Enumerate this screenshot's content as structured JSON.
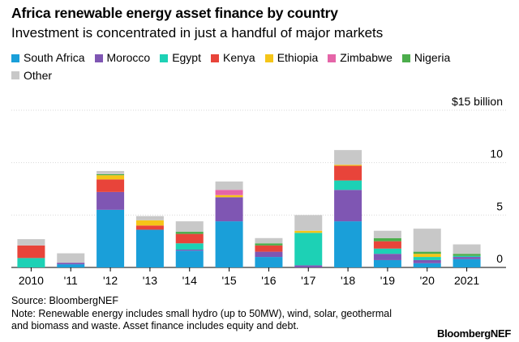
{
  "title": "Africa renewable energy asset finance by country",
  "subtitle": "Investment is concentrated in just a handful of major markets",
  "source": "Source: BloombergNEF",
  "note": "Note: Renewable energy includes small hydro (up to 50MW), wind, solar, geothermal and biomass and waste. Asset finance includes equity and debt.",
  "brand": "BloombergNEF",
  "chart_data": {
    "type": "bar",
    "stacked": true,
    "categories": [
      "2010",
      "'11",
      "'12",
      "'13",
      "'14",
      "'15",
      "'16",
      "'17",
      "'18",
      "'19",
      "'20",
      "2021"
    ],
    "ylim": [
      0,
      15
    ],
    "yticks": [
      {
        "value": 0,
        "label": "0"
      },
      {
        "value": 5,
        "label": "5"
      },
      {
        "value": 10,
        "label": "10"
      },
      {
        "value": 15,
        "label": "$15 billion"
      }
    ],
    "grid": true,
    "legend_position": "top",
    "series": [
      {
        "name": "South Africa",
        "color": "#1a9fd9",
        "values": [
          0.0,
          0.3,
          5.5,
          3.6,
          1.6,
          4.4,
          1.0,
          0.0,
          4.4,
          0.7,
          0.4,
          0.8
        ]
      },
      {
        "name": "Morocco",
        "color": "#7f56b3",
        "values": [
          0.0,
          0.15,
          1.7,
          0.0,
          0.1,
          2.3,
          0.5,
          0.2,
          3.0,
          0.6,
          0.3,
          0.2
        ]
      },
      {
        "name": "Egypt",
        "color": "#1dd1b5",
        "values": [
          0.9,
          0.0,
          0.0,
          0.0,
          0.6,
          0.0,
          0.0,
          3.1,
          0.9,
          0.5,
          0.3,
          0.1
        ]
      },
      {
        "name": "Kenya",
        "color": "#e8443a",
        "values": [
          1.2,
          0.0,
          1.2,
          0.4,
          0.9,
          0.0,
          0.6,
          0.0,
          1.4,
          0.7,
          0.0,
          0.0
        ]
      },
      {
        "name": "Ethiopia",
        "color": "#f5c518",
        "values": [
          0.0,
          0.0,
          0.4,
          0.5,
          0.0,
          0.2,
          0.0,
          0.2,
          0.1,
          0.0,
          0.3,
          0.0
        ]
      },
      {
        "name": "Zimbabwe",
        "color": "#e565a8",
        "values": [
          0.0,
          0.0,
          0.0,
          0.0,
          0.0,
          0.5,
          0.0,
          0.0,
          0.0,
          0.0,
          0.0,
          0.0
        ]
      },
      {
        "name": "Nigeria",
        "color": "#4cad4c",
        "values": [
          0.0,
          0.0,
          0.1,
          0.0,
          0.2,
          0.0,
          0.2,
          0.0,
          0.0,
          0.3,
          0.2,
          0.2
        ]
      },
      {
        "name": "Other",
        "color": "#c8c8c8",
        "values": [
          0.6,
          0.9,
          0.3,
          0.4,
          1.0,
          0.8,
          0.5,
          1.5,
          1.4,
          0.7,
          2.2,
          0.9
        ]
      }
    ]
  }
}
